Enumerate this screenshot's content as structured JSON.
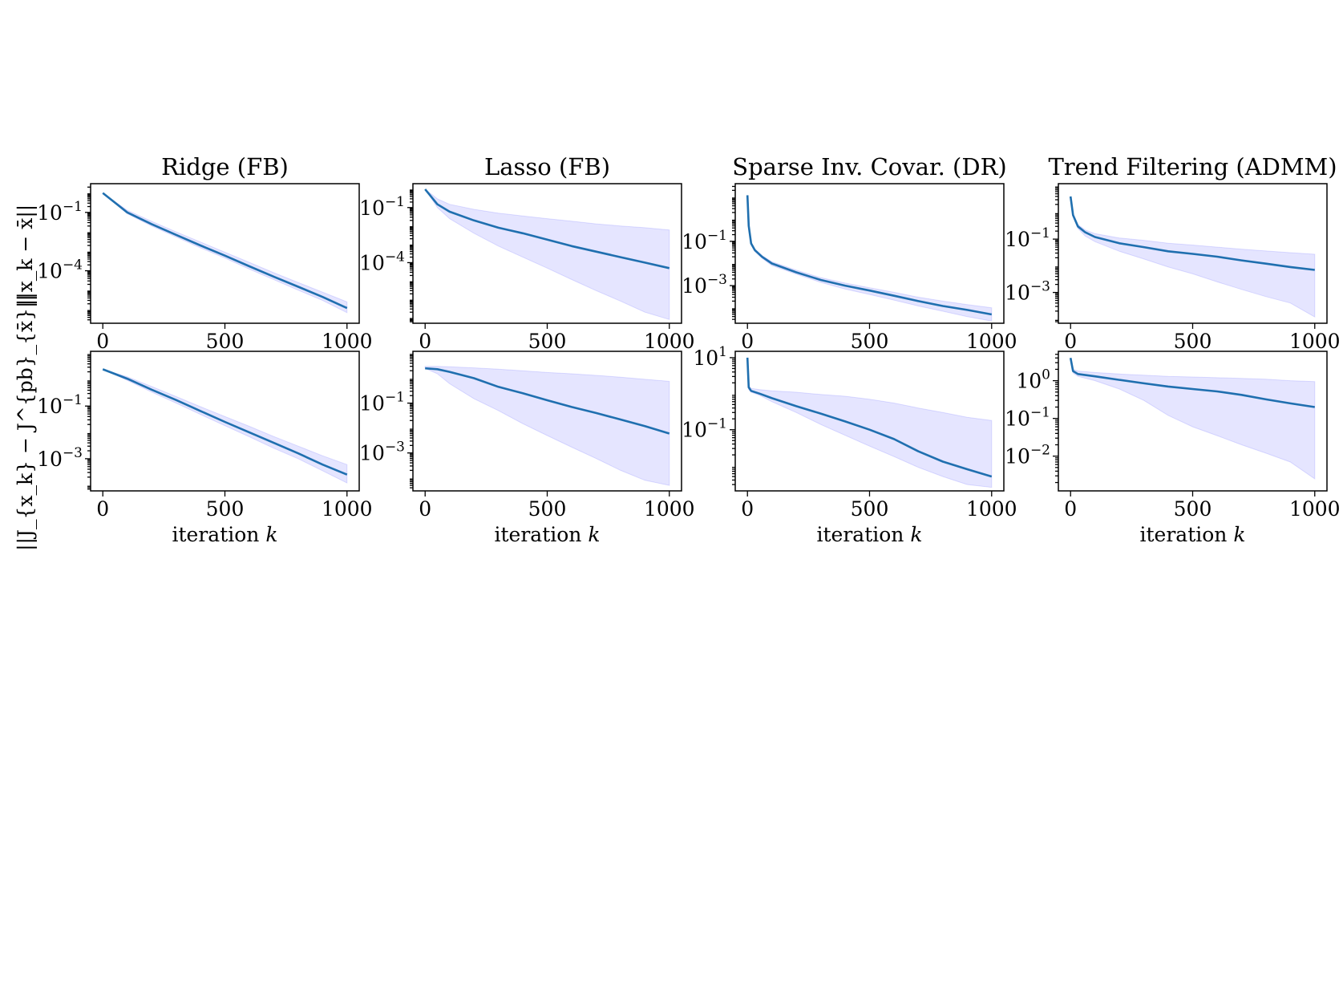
{
  "figure": {
    "row_labels": [
      "||x_k − x̄||",
      "||J_{x_k} − J^{pb}_{x̄}||"
    ],
    "xlabel_text": "iteration ",
    "xlabel_var": "k",
    "colors": {
      "mean": "#1f6faf",
      "band": "#0000ff"
    }
  },
  "chart_data": [
    {
      "id": "ridge-top",
      "type": "line",
      "title": "Ridge (FB)",
      "ylabel": "||x_k − x̄||",
      "xlabel": "",
      "xlim": [
        -50,
        1050
      ],
      "ylim": [
        2e-07,
        3.0
      ],
      "yscale": "log",
      "grid": false,
      "xticks": [
        0,
        500,
        1000
      ],
      "yticks": [
        {
          "value": 0.1,
          "base": "10",
          "exp": "−1"
        },
        {
          "value": 0.0001,
          "base": "10",
          "exp": "−4"
        }
      ],
      "series": [
        {
          "role": "mean",
          "x": [
            0,
            100,
            200,
            300,
            400,
            500,
            600,
            700,
            800,
            900,
            1000
          ],
          "y": [
            1.0,
            0.1,
            0.025,
            0.007,
            0.002,
            0.0006,
            0.00017,
            5e-05,
            1.5e-05,
            4.5e-06,
            1.2e-06
          ]
        },
        {
          "role": "upper",
          "x": [
            0,
            100,
            200,
            300,
            400,
            500,
            600,
            700,
            800,
            900,
            1000
          ],
          "y": [
            1.0,
            0.13,
            0.035,
            0.01,
            0.003,
            0.0009,
            0.00027,
            8e-05,
            2.5e-05,
            8e-06,
            2.5e-06
          ]
        },
        {
          "role": "lower",
          "x": [
            0,
            100,
            200,
            300,
            400,
            500,
            600,
            700,
            800,
            900,
            1000
          ],
          "y": [
            1.0,
            0.085,
            0.02,
            0.0055,
            0.0015,
            0.00045,
            0.00012,
            3.5e-05,
            1e-05,
            3e-06,
            7e-07
          ]
        }
      ]
    },
    {
      "id": "lasso-top",
      "type": "line",
      "title": "Lasso (FB)",
      "ylabel": "",
      "xlabel": "",
      "xlim": [
        -50,
        1050
      ],
      "ylim": [
        5e-08,
        2.0
      ],
      "yscale": "log",
      "grid": false,
      "xticks": [
        0,
        500,
        1000
      ],
      "yticks": [
        {
          "value": 0.1,
          "base": "10",
          "exp": "−1"
        },
        {
          "value": 0.0001,
          "base": "10",
          "exp": "−4"
        }
      ],
      "series": [
        {
          "role": "mean",
          "x": [
            0,
            50,
            100,
            200,
            300,
            400,
            500,
            600,
            700,
            800,
            900,
            1000
          ],
          "y": [
            1.0,
            0.15,
            0.06,
            0.02,
            0.008,
            0.004,
            0.0018,
            0.0008,
            0.0004,
            0.0002,
            0.0001,
            5e-05
          ]
        },
        {
          "role": "upper",
          "x": [
            0,
            50,
            100,
            200,
            300,
            400,
            500,
            600,
            700,
            800,
            900,
            1000
          ],
          "y": [
            1.0,
            0.3,
            0.15,
            0.08,
            0.05,
            0.035,
            0.025,
            0.018,
            0.013,
            0.01,
            0.008,
            0.006
          ]
        },
        {
          "role": "lower",
          "x": [
            0,
            50,
            100,
            200,
            300,
            400,
            500,
            600,
            700,
            800,
            900,
            1000
          ],
          "y": [
            1.0,
            0.1,
            0.025,
            0.004,
            0.0008,
            0.0002,
            5e-05,
            1.2e-05,
            3e-06,
            8e-07,
            2e-07,
            8e-08
          ]
        }
      ]
    },
    {
      "id": "sparse-top",
      "type": "line",
      "title": "Sparse Inv. Covar. (DR)",
      "ylabel": "",
      "xlabel": "",
      "xlim": [
        -50,
        1050
      ],
      "ylim": [
        2e-05,
        40
      ],
      "yscale": "log",
      "grid": false,
      "xticks": [
        0,
        500,
        1000
      ],
      "yticks": [
        {
          "value": 0.1,
          "base": "10",
          "exp": "−1"
        },
        {
          "value": 0.001,
          "base": "10",
          "exp": "−3"
        }
      ],
      "series": [
        {
          "role": "mean",
          "x": [
            0,
            5,
            15,
            30,
            60,
            100,
            200,
            300,
            400,
            500,
            600,
            700,
            800,
            900,
            1000
          ],
          "y": [
            12,
            0.5,
            0.08,
            0.04,
            0.02,
            0.01,
            0.004,
            0.0018,
            0.001,
            0.0006,
            0.00035,
            0.0002,
            0.00012,
            8e-05,
            5e-05
          ]
        },
        {
          "role": "upper",
          "x": [
            0,
            5,
            15,
            30,
            60,
            100,
            200,
            300,
            400,
            500,
            600,
            700,
            800,
            900,
            1000
          ],
          "y": [
            12,
            0.6,
            0.09,
            0.045,
            0.023,
            0.012,
            0.005,
            0.0023,
            0.0013,
            0.0008,
            0.0005,
            0.0003,
            0.0002,
            0.00014,
            0.0001
          ]
        },
        {
          "role": "lower",
          "x": [
            0,
            5,
            15,
            30,
            60,
            100,
            200,
            300,
            400,
            500,
            600,
            700,
            800,
            900,
            1000
          ],
          "y": [
            12,
            0.45,
            0.07,
            0.035,
            0.017,
            0.008,
            0.0033,
            0.0014,
            0.0007,
            0.0004,
            0.00022,
            0.00012,
            7e-05,
            4e-05,
            2.5e-05
          ]
        }
      ]
    },
    {
      "id": "trend-top",
      "type": "line",
      "title": "Trend Filtering (ADMM)",
      "ylabel": "",
      "xlabel": "",
      "xlim": [
        -50,
        1050
      ],
      "ylim": [
        7e-05,
        12
      ],
      "yscale": "log",
      "grid": false,
      "xticks": [
        0,
        500,
        1000
      ],
      "yticks": [
        {
          "value": 0.1,
          "base": "10",
          "exp": "−1"
        },
        {
          "value": 0.001,
          "base": "10",
          "exp": "−3"
        }
      ],
      "series": [
        {
          "role": "mean",
          "x": [
            0,
            10,
            30,
            60,
            100,
            200,
            300,
            400,
            500,
            600,
            700,
            800,
            900,
            1000
          ],
          "y": [
            4,
            0.8,
            0.3,
            0.18,
            0.12,
            0.07,
            0.05,
            0.035,
            0.028,
            0.022,
            0.016,
            0.012,
            0.009,
            0.007
          ]
        },
        {
          "role": "upper",
          "x": [
            0,
            10,
            30,
            60,
            100,
            200,
            300,
            400,
            500,
            600,
            700,
            800,
            900,
            1000
          ],
          "y": [
            4,
            0.9,
            0.35,
            0.22,
            0.16,
            0.11,
            0.09,
            0.07,
            0.06,
            0.05,
            0.042,
            0.036,
            0.031,
            0.027
          ]
        },
        {
          "role": "lower",
          "x": [
            0,
            10,
            30,
            60,
            100,
            200,
            300,
            400,
            500,
            600,
            700,
            800,
            900,
            1000
          ],
          "y": [
            4,
            0.7,
            0.25,
            0.13,
            0.08,
            0.035,
            0.018,
            0.009,
            0.005,
            0.0025,
            0.0013,
            0.0007,
            0.0004,
            0.00012
          ]
        }
      ]
    },
    {
      "id": "ridge-bottom",
      "type": "line",
      "title": "",
      "ylabel": "||J_{x_k} − J^{pb}_{x̄}||",
      "xlabel": "iteration k",
      "xlim": [
        -50,
        1050
      ],
      "ylim": [
        6e-05,
        12
      ],
      "yscale": "log",
      "grid": false,
      "xticks": [
        0,
        500,
        1000
      ],
      "yticks": [
        {
          "value": 0.1,
          "base": "10",
          "exp": "−1"
        },
        {
          "value": 0.001,
          "base": "10",
          "exp": "−3"
        }
      ],
      "series": [
        {
          "role": "mean",
          "x": [
            0,
            100,
            200,
            300,
            400,
            500,
            600,
            700,
            800,
            900,
            1000
          ],
          "y": [
            2.5,
            1.1,
            0.42,
            0.17,
            0.065,
            0.025,
            0.01,
            0.004,
            0.0016,
            0.0006,
            0.00025
          ]
        },
        {
          "role": "upper",
          "x": [
            0,
            100,
            200,
            300,
            400,
            500,
            600,
            700,
            800,
            900,
            1000
          ],
          "y": [
            2.5,
            1.3,
            0.55,
            0.23,
            0.095,
            0.04,
            0.017,
            0.007,
            0.003,
            0.0013,
            0.0006
          ]
        },
        {
          "role": "lower",
          "x": [
            0,
            100,
            200,
            300,
            400,
            500,
            600,
            700,
            800,
            900,
            1000
          ],
          "y": [
            2.5,
            0.95,
            0.34,
            0.13,
            0.048,
            0.018,
            0.0068,
            0.0025,
            0.001,
            0.00035,
            0.00012
          ]
        }
      ]
    },
    {
      "id": "lasso-bottom",
      "type": "line",
      "title": "",
      "ylabel": "",
      "xlabel": "iteration k",
      "xlim": [
        -50,
        1050
      ],
      "ylim": [
        3e-05,
        12
      ],
      "yscale": "log",
      "grid": false,
      "xticks": [
        0,
        500,
        1000
      ],
      "yticks": [
        {
          "value": 0.1,
          "base": "10",
          "exp": "−1"
        },
        {
          "value": 0.001,
          "base": "10",
          "exp": "−3"
        }
      ],
      "series": [
        {
          "role": "mean",
          "x": [
            0,
            50,
            100,
            200,
            300,
            400,
            500,
            600,
            700,
            800,
            900,
            1000
          ],
          "y": [
            2.5,
            2.3,
            1.8,
            1.0,
            0.45,
            0.25,
            0.13,
            0.07,
            0.04,
            0.022,
            0.012,
            0.006
          ]
        },
        {
          "role": "upper",
          "x": [
            0,
            50,
            100,
            200,
            300,
            400,
            500,
            600,
            700,
            800,
            900,
            1000
          ],
          "y": [
            3,
            3,
            2.9,
            2.6,
            2.3,
            2.0,
            1.7,
            1.5,
            1.3,
            1.1,
            0.9,
            0.75
          ]
        },
        {
          "role": "lower",
          "x": [
            0,
            50,
            100,
            200,
            300,
            400,
            500,
            600,
            700,
            800,
            900,
            1000
          ],
          "y": [
            2.5,
            1.5,
            0.6,
            0.15,
            0.05,
            0.015,
            0.005,
            0.0017,
            0.0006,
            0.0002,
            8e-05,
            5e-05
          ]
        }
      ]
    },
    {
      "id": "sparse-bottom",
      "type": "line",
      "title": "",
      "ylabel": "",
      "xlabel": "iteration k",
      "xlim": [
        -50,
        1050
      ],
      "ylim": [
        0.002,
        15
      ],
      "yscale": "log",
      "grid": false,
      "xticks": [
        0,
        500,
        1000
      ],
      "yticks": [
        {
          "value": 10,
          "base": "10",
          "exp": "1"
        },
        {
          "value": 0.1,
          "base": "10",
          "exp": "−1"
        }
      ],
      "series": [
        {
          "role": "mean",
          "x": [
            0,
            5,
            15,
            50,
            100,
            200,
            300,
            400,
            500,
            600,
            700,
            800,
            900,
            1000
          ],
          "y": [
            10,
            1.5,
            1.2,
            1.0,
            0.75,
            0.45,
            0.28,
            0.17,
            0.1,
            0.055,
            0.025,
            0.013,
            0.008,
            0.005
          ]
        },
        {
          "role": "upper",
          "x": [
            0,
            5,
            15,
            50,
            100,
            200,
            300,
            400,
            500,
            600,
            700,
            800,
            900,
            1000
          ],
          "y": [
            10,
            1.7,
            1.4,
            1.3,
            1.2,
            1.1,
            0.95,
            0.85,
            0.7,
            0.55,
            0.4,
            0.3,
            0.22,
            0.18
          ]
        },
        {
          "role": "lower",
          "x": [
            0,
            5,
            15,
            50,
            100,
            200,
            300,
            400,
            500,
            600,
            700,
            800,
            900,
            1000
          ],
          "y": [
            10,
            1.3,
            1.1,
            0.9,
            0.6,
            0.3,
            0.14,
            0.07,
            0.035,
            0.018,
            0.009,
            0.005,
            0.003,
            0.0025
          ]
        }
      ]
    },
    {
      "id": "trend-bottom",
      "type": "line",
      "title": "",
      "ylabel": "",
      "xlabel": "iteration k",
      "xlim": [
        -50,
        1050
      ],
      "ylim": [
        0.0012,
        6
      ],
      "yscale": "log",
      "grid": false,
      "xticks": [
        0,
        500,
        1000
      ],
      "yticks": [
        {
          "value": 1,
          "base": "10",
          "exp": "0"
        },
        {
          "value": 0.1,
          "base": "10",
          "exp": "−1"
        },
        {
          "value": 0.01,
          "base": "10",
          "exp": "−2"
        }
      ],
      "series": [
        {
          "role": "mean",
          "x": [
            0,
            10,
            30,
            100,
            200,
            300,
            400,
            500,
            600,
            700,
            800,
            900,
            1000
          ],
          "y": [
            4,
            1.8,
            1.5,
            1.3,
            1.05,
            0.85,
            0.7,
            0.6,
            0.52,
            0.42,
            0.32,
            0.25,
            0.2
          ]
        },
        {
          "role": "upper",
          "x": [
            0,
            10,
            30,
            100,
            200,
            300,
            400,
            500,
            600,
            700,
            800,
            900,
            1000
          ],
          "y": [
            4,
            2.0,
            1.8,
            1.65,
            1.5,
            1.4,
            1.3,
            1.25,
            1.2,
            1.15,
            1.1,
            1.0,
            0.95
          ]
        },
        {
          "role": "lower",
          "x": [
            0,
            10,
            30,
            100,
            200,
            300,
            400,
            500,
            600,
            700,
            800,
            900,
            1000
          ],
          "y": [
            4,
            1.6,
            1.3,
            1.0,
            0.6,
            0.3,
            0.12,
            0.06,
            0.035,
            0.02,
            0.012,
            0.007,
            0.0025
          ]
        }
      ]
    }
  ]
}
